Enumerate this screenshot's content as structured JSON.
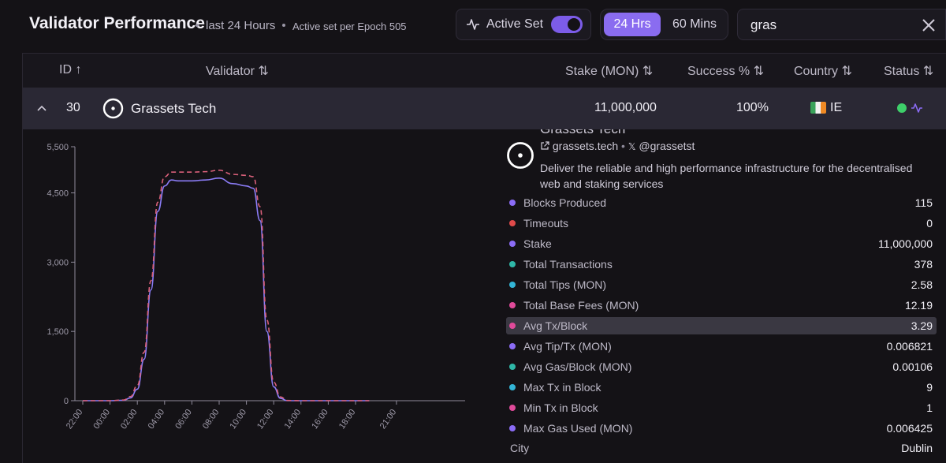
{
  "header": {
    "title": "Validator Performance",
    "period": "last 24 Hours",
    "epoch_note": "Active set per Epoch 505",
    "active_set_label": "Active Set",
    "active_set_on": true,
    "range_options": [
      "24 Hrs",
      "60 Mins"
    ],
    "range_selected": "24 Hrs",
    "search_value": "gras"
  },
  "table": {
    "columns": [
      "ID ↑",
      "Validator ⇅",
      "Stake (MON) ⇅",
      "Success % ⇅",
      "Country ⇅",
      "Status ⇅"
    ],
    "row": {
      "id": "30",
      "name": "Grassets Tech",
      "stake": "11,000,000",
      "success": "100%",
      "country": "IE",
      "status_color": "#3ecf6a"
    }
  },
  "details": {
    "name": "Grassets Tech",
    "website": "grassets.tech",
    "x_handle": "@grassetst",
    "separator": "•",
    "description": "Deliver the reliable and high performance infrastructure for the decentralised web and staking services",
    "stats": [
      {
        "label": "Blocks Produced",
        "value": "115",
        "color": "#8b6cf6"
      },
      {
        "label": "Timeouts",
        "value": "0",
        "color": "#e04a4a"
      },
      {
        "label": "Stake",
        "value": "11,000,000",
        "color": "#8b6cf6"
      },
      {
        "label": "Total Transactions",
        "value": "378",
        "color": "#2fb8a8"
      },
      {
        "label": "Total Tips (MON)",
        "value": "2.58",
        "color": "#33b5d6"
      },
      {
        "label": "Total Base Fees (MON)",
        "value": "12.19",
        "color": "#e04a9a"
      },
      {
        "label": "Avg Tx/Block",
        "value": "3.29",
        "color": "#e04a9a"
      },
      {
        "label": "Avg Tip/Tx (MON)",
        "value": "0.006821",
        "color": "#8b6cf6"
      },
      {
        "label": "Avg Gas/Block (MON)",
        "value": "0.00106",
        "color": "#2fb8a8"
      },
      {
        "label": "Max Tx in Block",
        "value": "9",
        "color": "#33b5d6"
      },
      {
        "label": "Min Tx in Block",
        "value": "1",
        "color": "#e04a9a"
      },
      {
        "label": "Max Gas Used (MON)",
        "value": "0.006425",
        "color": "#8b6cf6"
      }
    ],
    "city_label": "City",
    "city_value": "Dublin"
  },
  "chart_data": {
    "type": "line",
    "x_ticks": [
      "22:00",
      "00:00",
      "02:00",
      "04:00",
      "06:00",
      "08:00",
      "10:00",
      "12:00",
      "14:00",
      "16:00",
      "18:00",
      "21:00"
    ],
    "y_ticks": [
      "0",
      "1,500",
      "3,000",
      "4,500",
      "5,500"
    ],
    "ylim": [
      0,
      5500
    ],
    "x": [
      "22:00",
      "23:00",
      "00:00",
      "01:00",
      "01:30",
      "02:00",
      "02:30",
      "03:00",
      "03:30",
      "04:00",
      "04:30",
      "05:00",
      "06:00",
      "07:00",
      "08:00",
      "09:00",
      "10:00",
      "10:30",
      "11:00",
      "11:30",
      "12:00",
      "12:30",
      "13:00",
      "14:00",
      "15:00",
      "16:00",
      "17:00",
      "18:00",
      "19:00"
    ],
    "series": [
      {
        "style": "solid",
        "color": "#8b7cf6",
        "values": [
          0,
          0,
          0,
          10,
          60,
          250,
          900,
          2400,
          4100,
          4650,
          4780,
          4760,
          4760,
          4780,
          4820,
          4700,
          4650,
          4600,
          3900,
          1500,
          300,
          50,
          0,
          0,
          0,
          0,
          0,
          0,
          0
        ]
      },
      {
        "style": "dashed",
        "color": "#d9607a",
        "values": [
          0,
          0,
          0,
          15,
          90,
          330,
          1050,
          2600,
          4300,
          4850,
          4950,
          4950,
          4950,
          4960,
          4990,
          4900,
          4880,
          4850,
          4200,
          1750,
          400,
          80,
          5,
          0,
          0,
          0,
          0,
          0,
          0
        ]
      }
    ]
  }
}
